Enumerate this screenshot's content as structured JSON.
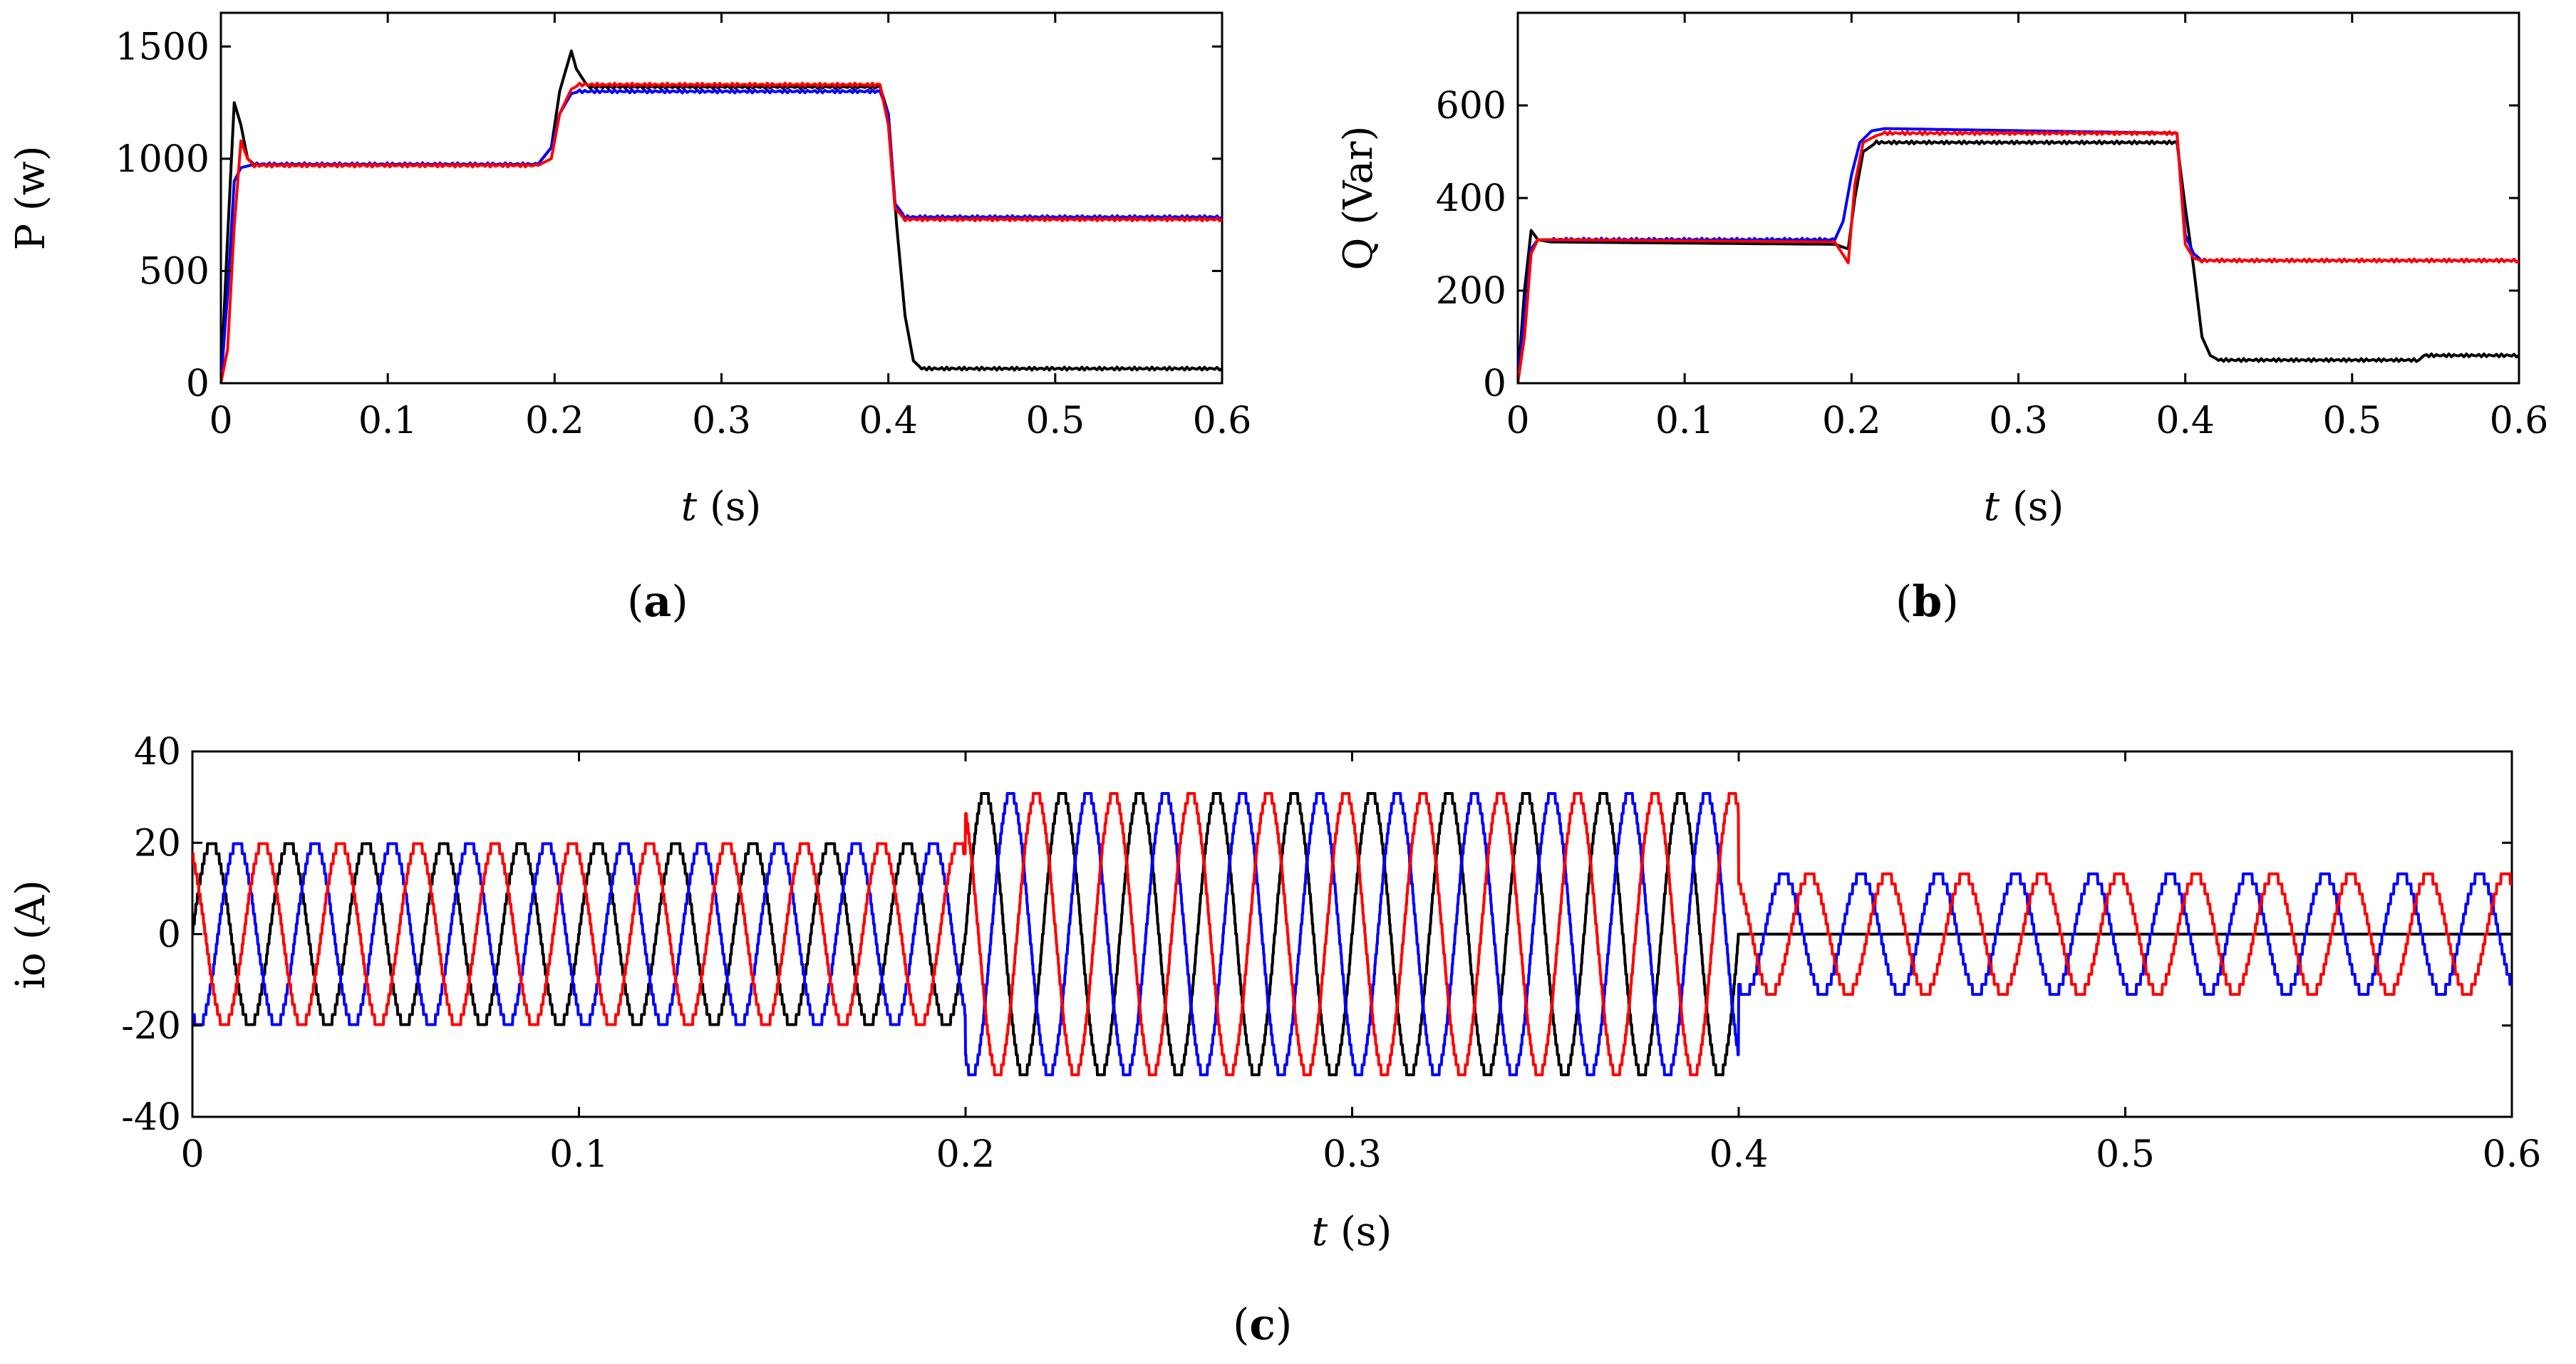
{
  "chart_data": [
    {
      "id": "a",
      "type": "line",
      "panel_label": "a",
      "ylabel": "P (w)",
      "xlabel_var": "t",
      "xlabel_unit": " (s)",
      "xlim": [
        0,
        0.6
      ],
      "ylim": [
        0,
        1650
      ],
      "xticks": [
        0,
        0.1,
        0.2,
        0.3,
        0.4,
        0.5,
        0.6
      ],
      "xtick_labels": [
        "0",
        "0.1",
        "0.2",
        "0.3",
        "0.4",
        "0.5",
        "0.6"
      ],
      "yticks": [
        0,
        500,
        1000,
        1500
      ],
      "ytick_labels": [
        "0",
        "500",
        "1000",
        "1500"
      ],
      "series": [
        {
          "name": "black",
          "color": "#000000",
          "x": [
            0,
            0.004,
            0.008,
            0.012,
            0.016,
            0.02,
            0.19,
            0.198,
            0.203,
            0.21,
            0.213,
            0.22,
            0.395,
            0.4,
            0.405,
            0.41,
            0.415,
            0.42,
            0.6
          ],
          "y": [
            0,
            650,
            1250,
            1150,
            1000,
            975,
            975,
            1050,
            1300,
            1480,
            1400,
            1320,
            1320,
            1200,
            700,
            300,
            100,
            65,
            65
          ]
        },
        {
          "name": "blue",
          "color": "#0000ff",
          "x": [
            0,
            0.004,
            0.008,
            0.012,
            0.02,
            0.19,
            0.198,
            0.203,
            0.21,
            0.215,
            0.395,
            0.4,
            0.404,
            0.41,
            0.6
          ],
          "y": [
            0,
            400,
            900,
            960,
            975,
            975,
            1050,
            1200,
            1290,
            1300,
            1300,
            1200,
            800,
            740,
            740
          ]
        },
        {
          "name": "red",
          "color": "#ff0000",
          "x": [
            0,
            0.004,
            0.008,
            0.012,
            0.016,
            0.02,
            0.19,
            0.198,
            0.203,
            0.21,
            0.215,
            0.395,
            0.4,
            0.404,
            0.41,
            0.6
          ],
          "y": [
            0,
            150,
            700,
            1080,
            1000,
            970,
            970,
            1000,
            1200,
            1310,
            1330,
            1330,
            1150,
            780,
            730,
            730
          ]
        }
      ]
    },
    {
      "id": "b",
      "type": "line",
      "panel_label": "b",
      "ylabel": "Q (Var)",
      "xlabel_var": "t",
      "xlabel_unit": " (s)",
      "xlim": [
        0,
        0.6
      ],
      "ylim": [
        0,
        800
      ],
      "xticks": [
        0,
        0.1,
        0.2,
        0.3,
        0.4,
        0.5,
        0.6
      ],
      "xtick_labels": [
        "0",
        "0.1",
        "0.2",
        "0.3",
        "0.4",
        "0.5",
        "0.6"
      ],
      "yticks": [
        0,
        200,
        400,
        600
      ],
      "ytick_labels": [
        "0",
        "200",
        "400",
        "600"
      ],
      "series": [
        {
          "name": "black",
          "color": "#000000",
          "x": [
            0,
            0.004,
            0.008,
            0.012,
            0.02,
            0.19,
            0.198,
            0.202,
            0.207,
            0.215,
            0.395,
            0.4,
            0.405,
            0.41,
            0.415,
            0.42,
            0.54,
            0.543,
            0.6
          ],
          "y": [
            0,
            200,
            330,
            310,
            305,
            300,
            290,
            400,
            500,
            520,
            520,
            380,
            250,
            100,
            60,
            50,
            50,
            60,
            60
          ]
        },
        {
          "name": "blue",
          "color": "#0000ff",
          "x": [
            0,
            0.004,
            0.008,
            0.012,
            0.02,
            0.19,
            0.195,
            0.2,
            0.205,
            0.212,
            0.22,
            0.395,
            0.4,
            0.405,
            0.41,
            0.6
          ],
          "y": [
            0,
            150,
            290,
            310,
            310,
            310,
            350,
            450,
            520,
            545,
            550,
            540,
            320,
            280,
            265,
            265
          ]
        },
        {
          "name": "red",
          "color": "#ff0000",
          "x": [
            0,
            0.004,
            0.008,
            0.012,
            0.02,
            0.19,
            0.198,
            0.202,
            0.207,
            0.215,
            0.22,
            0.395,
            0.4,
            0.405,
            0.41,
            0.6
          ],
          "y": [
            0,
            100,
            280,
            310,
            310,
            305,
            260,
            430,
            520,
            535,
            540,
            540,
            300,
            270,
            265,
            265
          ]
        }
      ]
    },
    {
      "id": "c",
      "type": "line",
      "panel_label": "c",
      "ylabel": "io (A)",
      "xlabel_var": "t",
      "xlabel_unit": " (s)",
      "xlim": [
        0,
        0.6
      ],
      "ylim": [
        -40,
        40
      ],
      "xticks": [
        0,
        0.1,
        0.2,
        0.3,
        0.4,
        0.5,
        0.6
      ],
      "xtick_labels": [
        "0",
        "0.1",
        "0.2",
        "0.3",
        "0.4",
        "0.5",
        "0.6"
      ],
      "yticks": [
        -40,
        -20,
        0,
        20,
        40
      ],
      "ytick_labels": [
        "-40",
        "-20",
        "0",
        "20",
        "40"
      ],
      "waveform": {
        "frequency_hz": 50,
        "segments": [
          {
            "t_start": 0,
            "t_end": 0.2,
            "amplitude": 20
          },
          {
            "t_start": 0.2,
            "t_end": 0.4,
            "amplitude": 31
          },
          {
            "t_start": 0.4,
            "t_end": 0.6,
            "amplitude": 13
          }
        ]
      },
      "series": [
        {
          "name": "black",
          "color": "#000000",
          "phase_deg": 0,
          "zero_after": 0.4
        },
        {
          "name": "blue",
          "color": "#0000ff",
          "phase_deg": -120,
          "zero_after": null
        },
        {
          "name": "red",
          "color": "#ff0000",
          "phase_deg": 120,
          "zero_after": null
        }
      ]
    }
  ]
}
